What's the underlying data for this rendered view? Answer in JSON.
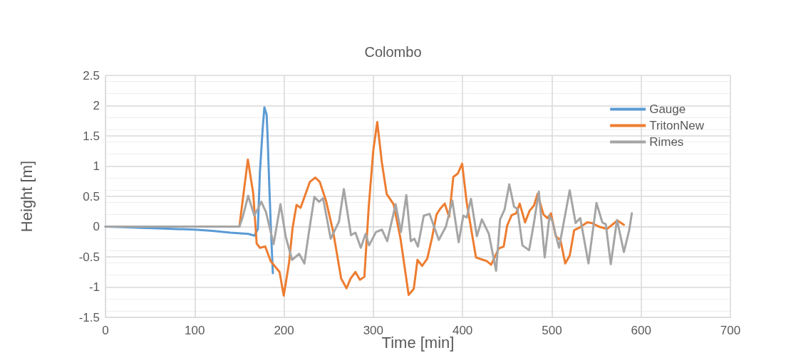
{
  "chart_data": {
    "type": "line",
    "title": "Colombo",
    "xlabel": "Time [min]",
    "ylabel": "Height [m]",
    "xlim": [
      0,
      700
    ],
    "xticks": [
      0,
      100,
      200,
      300,
      400,
      500,
      600,
      700
    ],
    "ylim": [
      -1.5,
      2.5
    ],
    "yticks": [
      -1.5,
      -1,
      -0.5,
      0,
      0.5,
      1,
      1.5,
      2,
      2.5
    ],
    "grid": true,
    "legend": "top right",
    "marker": "none",
    "line_style": "solid",
    "series": [
      {
        "name": "Gauge",
        "color": "#5b9bd5",
        "x": [
          0,
          20,
          40,
          60,
          80,
          100,
          120,
          140,
          160,
          167,
          170.7,
          173,
          176,
          178,
          180.5,
          181.5,
          183.7,
          185.5,
          187.5
        ],
        "values": [
          0,
          -0.01,
          -0.02,
          -0.03,
          -0.04,
          -0.05,
          -0.07,
          -0.1,
          -0.12,
          -0.15,
          -0.04,
          0.9,
          1.6,
          1.97,
          1.85,
          1.53,
          0.59,
          -0.1,
          -0.77
        ]
      },
      {
        "name": "TritonNew",
        "color": "#ed7d31",
        "x": [
          150,
          159.5,
          165.5,
          169.4,
          173,
          179,
          185,
          195,
          199.7,
          205.7,
          209.6,
          214,
          218.5,
          229,
          235,
          240,
          247,
          255,
          264,
          270,
          274.5,
          280,
          285,
          290,
          295,
          300,
          304.4,
          309.6,
          315,
          322.7,
          330.5,
          339.6,
          345.3,
          349.5,
          354.7,
          360.4,
          365.6,
          370.8,
          374.7,
          380,
          385,
          389.6,
          394.8,
          399.5,
          404.7,
          415,
          423,
          427,
          432,
          440.6,
          446,
          450,
          455,
          460,
          464,
          470,
          475,
          480,
          484,
          490.6,
          495,
          499,
          504.4,
          509.6,
          515,
          520,
          525,
          530.5,
          539.6,
          544.8,
          552.6,
          561.7,
          573.4,
          580.7
        ],
        "values": [
          0,
          1.11,
          0.55,
          -0.28,
          -0.35,
          -0.33,
          -0.57,
          -0.75,
          -1.14,
          -0.59,
          -0.02,
          0.36,
          0.31,
          0.74,
          0.81,
          0.74,
          0.43,
          -0.08,
          -0.86,
          -1.02,
          -0.86,
          -0.75,
          -0.88,
          -0.83,
          0.35,
          1.26,
          1.73,
          1.06,
          0.54,
          0.37,
          -0.2,
          -1.13,
          -1.03,
          -0.55,
          -0.65,
          -0.53,
          -0.2,
          0.2,
          0.29,
          0.38,
          0.16,
          0.82,
          0.88,
          1.04,
          0.39,
          -0.51,
          -0.55,
          -0.57,
          -0.63,
          -0.36,
          -0.33,
          0.02,
          0.19,
          0.22,
          0.38,
          0.07,
          0.26,
          0.35,
          0.54,
          0.2,
          0.14,
          0.22,
          -0.16,
          -0.22,
          -0.61,
          -0.48,
          -0.06,
          -0.02,
          0.07,
          0.06,
          0,
          -0.04,
          0.1,
          0.03
        ]
      },
      {
        "name": "Rimes",
        "color": "#a5a5a5",
        "x": [
          0,
          50,
          100,
          150,
          153.8,
          159.8,
          166.8,
          174.6,
          179.8,
          188.3,
          196,
          201.8,
          209,
          217,
          222.8,
          227.6,
          234,
          239.3,
          243.7,
          252.3,
          261.5,
          267,
          275,
          280,
          286,
          291.4,
          295.3,
          303,
          309.6,
          315.6,
          325,
          331,
          337,
          342,
          346,
          350,
          356.5,
          363,
          373.4,
          381.3,
          388.5,
          395.6,
          400.8,
          404.7,
          409.4,
          416,
          421.6,
          429.4,
          437.5,
          442,
          447,
          452.3,
          457.6,
          461.5,
          467,
          474.5,
          479.7,
          485.4,
          492,
          497.4,
          500.5,
          508,
          520,
          526.6,
          531.8,
          541,
          550,
          556.5,
          560.4,
          566,
          573,
          580.7,
          586.5,
          589.6
        ],
        "values": [
          0,
          0,
          0,
          0,
          0.16,
          0.51,
          0.18,
          0.41,
          0.24,
          -0.29,
          0.37,
          -0.16,
          -0.55,
          -0.45,
          -0.61,
          -0.12,
          0.49,
          0.41,
          0.47,
          -0.2,
          0.08,
          0.62,
          -0.14,
          -0.1,
          -0.35,
          -0.12,
          -0.31,
          -0.09,
          -0.05,
          -0.24,
          0.37,
          -0.09,
          0.52,
          -0.24,
          -0.2,
          -0.33,
          0.18,
          0.21,
          -0.22,
          0,
          0.43,
          -0.26,
          0.18,
          0.15,
          0.46,
          -0.16,
          0.12,
          -0.12,
          -0.73,
          0.12,
          0.28,
          0.7,
          0.33,
          0.29,
          -0.31,
          -0.39,
          0.04,
          0.58,
          -0.51,
          0.18,
          0.09,
          -0.35,
          0.6,
          0.06,
          0.14,
          -0.61,
          0.39,
          0.07,
          0.04,
          -0.62,
          0.11,
          -0.42,
          -0.07,
          0.22
        ]
      }
    ]
  }
}
